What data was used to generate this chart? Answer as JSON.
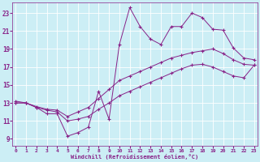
{
  "xlabel": "Windchill (Refroidissement éolien,°C)",
  "bg_color": "#cceef5",
  "grid_color": "#ffffff",
  "line_color": "#882288",
  "x_ticks": [
    0,
    1,
    2,
    3,
    4,
    5,
    6,
    7,
    8,
    9,
    10,
    11,
    12,
    13,
    14,
    15,
    16,
    17,
    18,
    19,
    20,
    21,
    22,
    23
  ],
  "y_ticks": [
    9,
    11,
    13,
    15,
    17,
    19,
    21,
    23
  ],
  "xlim": [
    -0.3,
    23.3
  ],
  "ylim": [
    8.2,
    24.2
  ],
  "series1_x": [
    0,
    1,
    2,
    3,
    4,
    5,
    6,
    7,
    8,
    9,
    10,
    11,
    12,
    13,
    14,
    15,
    16,
    17,
    18,
    19,
    20,
    21,
    22,
    23
  ],
  "series1_y": [
    13.2,
    13.0,
    12.5,
    11.8,
    11.8,
    9.3,
    9.7,
    10.3,
    14.3,
    11.2,
    19.5,
    23.6,
    21.5,
    20.1,
    19.5,
    21.5,
    21.5,
    23.0,
    22.5,
    21.2,
    21.1,
    19.1,
    18.0,
    17.8
  ],
  "series2_x": [
    0,
    1,
    2,
    3,
    4,
    5,
    6,
    7,
    8,
    9,
    10,
    11,
    12,
    13,
    14,
    15,
    16,
    17,
    18,
    19,
    20,
    21,
    22,
    23
  ],
  "series2_y": [
    13.0,
    13.0,
    12.6,
    12.3,
    12.2,
    11.5,
    12.0,
    12.5,
    13.5,
    14.5,
    15.5,
    16.0,
    16.5,
    17.0,
    17.5,
    18.0,
    18.3,
    18.6,
    18.8,
    19.0,
    18.5,
    17.8,
    17.3,
    17.2
  ],
  "series3_x": [
    0,
    1,
    2,
    3,
    4,
    5,
    6,
    7,
    8,
    9,
    10,
    11,
    12,
    13,
    14,
    15,
    16,
    17,
    18,
    19,
    20,
    21,
    22,
    23
  ],
  "series3_y": [
    13.0,
    13.0,
    12.5,
    12.2,
    12.0,
    11.0,
    11.2,
    11.5,
    12.3,
    13.0,
    13.8,
    14.3,
    14.8,
    15.3,
    15.8,
    16.3,
    16.8,
    17.2,
    17.3,
    17.0,
    16.5,
    16.0,
    15.8,
    17.2
  ]
}
